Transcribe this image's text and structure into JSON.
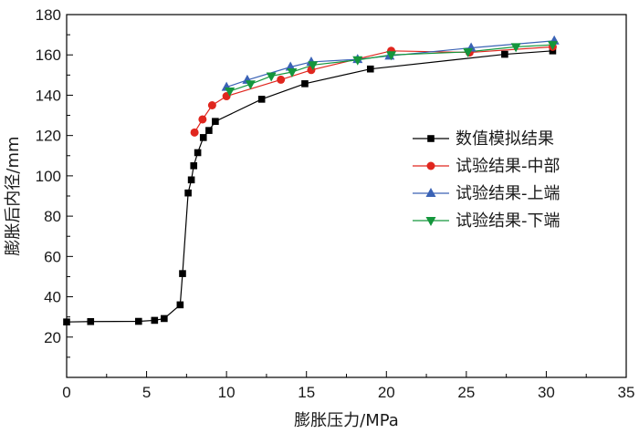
{
  "chart_data": {
    "type": "line",
    "xlabel": "膨胀压力/MPa",
    "ylabel": "膨胀后内径/mm",
    "xlim": [
      0,
      35
    ],
    "ylim": [
      0,
      180
    ],
    "xticks": [
      0,
      5,
      10,
      15,
      20,
      25,
      30,
      35
    ],
    "yticks": [
      20,
      40,
      60,
      80,
      100,
      120,
      140,
      160,
      180
    ],
    "grid": false,
    "legend_position": "right",
    "series": [
      {
        "name": "数值模拟结果",
        "color": "#000000",
        "marker": "square",
        "points": [
          [
            0.0,
            27.5
          ],
          [
            1.5,
            27.7
          ],
          [
            4.5,
            27.8
          ],
          [
            5.5,
            28.3
          ],
          [
            6.1,
            29.2
          ],
          [
            7.1,
            36.0
          ],
          [
            7.25,
            51.5
          ],
          [
            7.6,
            91.5
          ],
          [
            7.8,
            98.0
          ],
          [
            7.95,
            105.0
          ],
          [
            8.2,
            111.5
          ],
          [
            8.55,
            119.0
          ],
          [
            8.9,
            122.5
          ],
          [
            9.3,
            127.0
          ],
          [
            12.2,
            138.0
          ],
          [
            14.9,
            145.7
          ],
          [
            19.0,
            153.0
          ],
          [
            27.4,
            160.3
          ],
          [
            30.4,
            162.0
          ]
        ]
      },
      {
        "name": "试验结果-中部",
        "color": "#e0261e",
        "marker": "circle",
        "points": [
          [
            8.0,
            121.5
          ],
          [
            8.5,
            128.0
          ],
          [
            9.1,
            135.0
          ],
          [
            10.0,
            139.5
          ],
          [
            13.4,
            147.7
          ],
          [
            15.3,
            152.5
          ],
          [
            20.3,
            162.0
          ],
          [
            25.2,
            161.2
          ],
          [
            30.4,
            164.0
          ]
        ]
      },
      {
        "name": "试验结果-上端",
        "color": "#3a62b5",
        "marker": "triangle-up",
        "points": [
          [
            10.0,
            144.0
          ],
          [
            11.3,
            147.5
          ],
          [
            14.0,
            154.0
          ],
          [
            15.3,
            156.5
          ],
          [
            18.2,
            157.8
          ],
          [
            20.2,
            159.5
          ],
          [
            25.3,
            163.5
          ],
          [
            30.5,
            167.0
          ]
        ]
      },
      {
        "name": "试验结果-下端",
        "color": "#14963c",
        "marker": "triangle-down",
        "points": [
          [
            10.2,
            142.0
          ],
          [
            11.5,
            145.5
          ],
          [
            12.8,
            149.5
          ],
          [
            14.1,
            151.5
          ],
          [
            15.4,
            155.0
          ],
          [
            18.2,
            157.5
          ],
          [
            20.3,
            160.0
          ],
          [
            25.1,
            161.5
          ],
          [
            28.1,
            164.0
          ],
          [
            30.4,
            165.0
          ]
        ]
      }
    ]
  }
}
